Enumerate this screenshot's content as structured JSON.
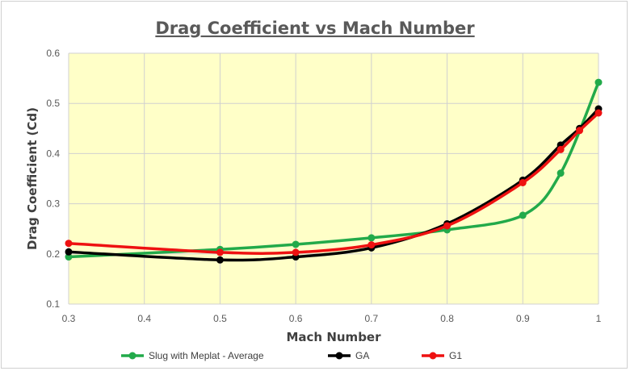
{
  "chart_data": {
    "type": "line",
    "title": "Drag Coefficient vs Mach Number",
    "xlabel": "Mach Number",
    "ylabel": "Drag Coefficient (Cd)",
    "xlim": [
      0.3,
      1
    ],
    "ylim": [
      0.1,
      0.6
    ],
    "x_ticks": [
      "0.3",
      "0.4",
      "0.5",
      "0.6",
      "0.7",
      "0.8",
      "0.9",
      "1"
    ],
    "y_ticks": [
      "0.1",
      "0.2",
      "0.3",
      "0.4",
      "0.5",
      "0.6"
    ],
    "grid": true,
    "plot_background": "#ffffc8",
    "legend_position": "bottom",
    "series": [
      {
        "name": "Slug with Meplat - Average",
        "color": "#22aa4a",
        "x": [
          0.3,
          0.5,
          0.6,
          0.7,
          0.8,
          0.9,
          0.95,
          1.0
        ],
        "y": [
          0.194,
          0.209,
          0.219,
          0.232,
          0.248,
          0.277,
          0.361,
          0.542
        ]
      },
      {
        "name": "GA",
        "color": "#000000",
        "x": [
          0.3,
          0.5,
          0.6,
          0.7,
          0.8,
          0.9,
          0.95,
          0.975,
          1.0
        ],
        "y": [
          0.204,
          0.188,
          0.194,
          0.212,
          0.26,
          0.347,
          0.417,
          0.45,
          0.489
        ]
      },
      {
        "name": "G1",
        "color": "#ee1111",
        "x": [
          0.3,
          0.5,
          0.6,
          0.7,
          0.8,
          0.9,
          0.95,
          0.975,
          1.0
        ],
        "y": [
          0.221,
          0.203,
          0.203,
          0.218,
          0.256,
          0.342,
          0.408,
          0.446,
          0.481
        ]
      }
    ]
  }
}
